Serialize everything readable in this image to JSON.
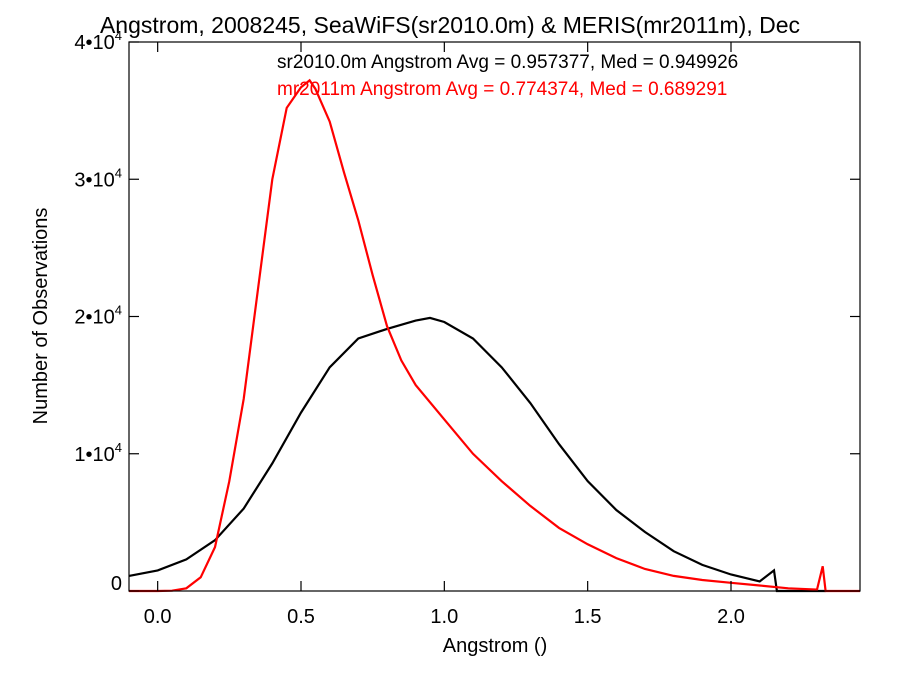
{
  "chart_data": {
    "type": "line",
    "title": "Angstrom, 2008245, SeaWiFS(sr2010.0m) & MERIS(mr2011m), Dec",
    "xlabel": "Angstrom ()",
    "ylabel": "Number of Observations",
    "xlim": [
      -0.1,
      2.45
    ],
    "ylim": [
      0,
      40000
    ],
    "xticks": [
      {
        "value": 0.0,
        "label": "0.0"
      },
      {
        "value": 0.5,
        "label": "0.5"
      },
      {
        "value": 1.0,
        "label": "1.0"
      },
      {
        "value": 1.5,
        "label": "1.5"
      },
      {
        "value": 2.0,
        "label": "2.0"
      }
    ],
    "yticks": [
      {
        "value": 0,
        "base": "0",
        "exp": ""
      },
      {
        "value": 10000,
        "base": "1•10",
        "exp": "4"
      },
      {
        "value": 20000,
        "base": "2•10",
        "exp": "4"
      },
      {
        "value": 30000,
        "base": "3•10",
        "exp": "4"
      },
      {
        "value": 40000,
        "base": "4•10",
        "exp": "4"
      }
    ],
    "grid": false,
    "legend_placement": "top-right",
    "series": [
      {
        "name": "sr2010.0m Angstrom Avg = 0.957377, Med = 0.949926",
        "color": "#000000",
        "x": [
          -0.1,
          0.0,
          0.1,
          0.2,
          0.3,
          0.4,
          0.5,
          0.6,
          0.7,
          0.8,
          0.9,
          0.95,
          1.0,
          1.1,
          1.2,
          1.3,
          1.4,
          1.5,
          1.6,
          1.7,
          1.8,
          1.9,
          2.0,
          2.1,
          2.15,
          2.16,
          2.2,
          2.3,
          2.33
        ],
        "y": [
          1100,
          1500,
          2300,
          3700,
          6000,
          9300,
          13000,
          16300,
          18400,
          19100,
          19700,
          19900,
          19600,
          18400,
          16300,
          13700,
          10700,
          8000,
          5900,
          4300,
          2900,
          1900,
          1200,
          700,
          1500,
          0,
          0,
          0,
          0
        ]
      },
      {
        "name": "mr2011m Angstrom Avg = 0.774374, Med = 0.689291",
        "color": "#ff0000",
        "x": [
          -0.1,
          0.0,
          0.05,
          0.1,
          0.15,
          0.2,
          0.25,
          0.3,
          0.35,
          0.4,
          0.45,
          0.5,
          0.53,
          0.55,
          0.6,
          0.65,
          0.7,
          0.75,
          0.8,
          0.85,
          0.9,
          1.0,
          1.1,
          1.2,
          1.3,
          1.4,
          1.5,
          1.6,
          1.7,
          1.8,
          1.9,
          2.0,
          2.1,
          2.2,
          2.3,
          2.32,
          2.33,
          2.34,
          2.45
        ],
        "y": [
          0,
          0,
          20,
          200,
          1000,
          3200,
          8000,
          14000,
          22000,
          30000,
          35200,
          36700,
          37200,
          36600,
          34200,
          30500,
          27000,
          23000,
          19300,
          16800,
          15000,
          12500,
          10000,
          8000,
          6200,
          4600,
          3400,
          2400,
          1600,
          1100,
          800,
          600,
          400,
          200,
          100,
          1800,
          0,
          0,
          0
        ]
      }
    ]
  }
}
